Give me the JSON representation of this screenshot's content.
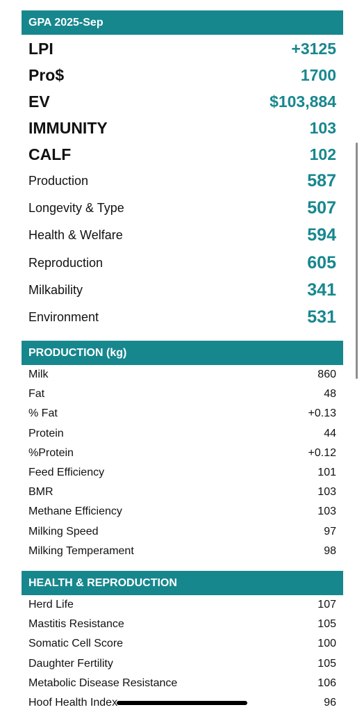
{
  "gpa": {
    "header": "GPA 2025-Sep",
    "big_rows": [
      {
        "label": "LPI",
        "value": "+3125"
      },
      {
        "label": "Pro$",
        "value": "1700"
      },
      {
        "label": "EV",
        "value": "$103,884"
      },
      {
        "label": "IMMUNITY",
        "value": "103"
      },
      {
        "label": "CALF",
        "value": "102"
      }
    ],
    "mid_rows": [
      {
        "label": "Production",
        "value": "587"
      },
      {
        "label": "Longevity & Type",
        "value": "507"
      },
      {
        "label": "Health & Welfare",
        "value": "594"
      },
      {
        "label": "Reproduction",
        "value": "605"
      },
      {
        "label": "Milkability",
        "value": "341"
      },
      {
        "label": "Environment",
        "value": "531"
      }
    ]
  },
  "production": {
    "header": "PRODUCTION (kg)",
    "rows": [
      {
        "label": "Milk",
        "value": "860"
      },
      {
        "label": "Fat",
        "value": "48"
      },
      {
        "label": "% Fat",
        "value": "+0.13"
      },
      {
        "label": "Protein",
        "value": "44"
      },
      {
        "label": "%Protein",
        "value": "+0.12"
      },
      {
        "label": "Feed Efficiency",
        "value": "101"
      },
      {
        "label": "BMR",
        "value": "103"
      },
      {
        "label": "Methane Efficiency",
        "value": "103"
      },
      {
        "label": "Milking Speed",
        "value": "97"
      },
      {
        "label": "Milking Temperament",
        "value": "98"
      }
    ]
  },
  "health": {
    "header": "HEALTH & REPRODUCTION",
    "rows": [
      {
        "label": "Herd Life",
        "value": "107"
      },
      {
        "label": "Mastitis Resistance",
        "value": "105"
      },
      {
        "label": "Somatic Cell Score",
        "value": "100"
      },
      {
        "label": "Daughter Fertility",
        "value": "105"
      },
      {
        "label": "Metabolic Disease Resistance",
        "value": "106"
      },
      {
        "label": "Hoof Health Index",
        "value": "96"
      }
    ]
  },
  "colors": {
    "accent": "#17878e",
    "header_text": "#ffffff"
  }
}
